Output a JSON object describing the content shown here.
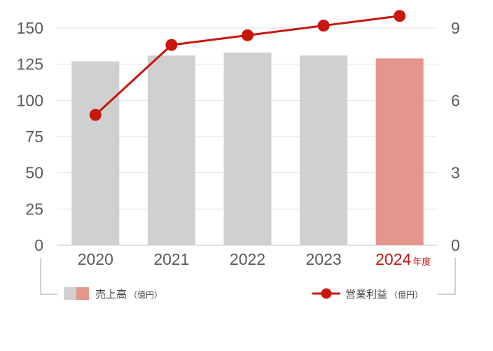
{
  "chart_data": {
    "type": "bar+line",
    "categories": [
      "2020",
      "2021",
      "2022",
      "2023",
      "2024"
    ],
    "year_suffix": "年度",
    "highlight_index": 4,
    "bar_series": {
      "name": "売上高",
      "unit": "（億円）",
      "values": [
        127,
        131,
        133,
        131,
        129
      ],
      "axis": "left"
    },
    "line_series": {
      "name": "営業利益",
      "unit": "（億円）",
      "values": [
        5.4,
        8.3,
        8.7,
        9.1,
        9.5
      ],
      "axis": "right"
    },
    "y_left": {
      "min": 0,
      "max": 150,
      "ticks": [
        0,
        25,
        50,
        75,
        100,
        125,
        150
      ]
    },
    "y_right": {
      "min": 0,
      "max": 9,
      "ticks": [
        0,
        3,
        6,
        9
      ]
    },
    "colors": {
      "bar": "#d0d0d0",
      "bar_highlight": "#e4968c",
      "line": "#c8160c",
      "grid": "#e2e2e2",
      "highlight_label": "#c0180f"
    },
    "legend_placement": "bottom"
  }
}
